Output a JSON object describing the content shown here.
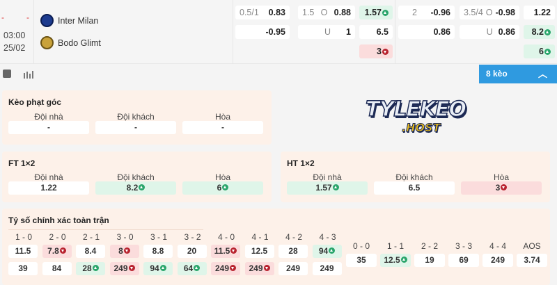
{
  "match": {
    "home_score": "-",
    "away_score": "-",
    "time": "03:00",
    "date": "25/02",
    "home": "Inter Milan",
    "away": "Bodo Glimt"
  },
  "odds": {
    "hdp": {
      "line": "0.5/1",
      "home": "0.83",
      "away": "-0.95"
    },
    "ou": {
      "line": "1.5",
      "o": "O",
      "over": "0.88",
      "u": "U",
      "under": "1"
    },
    "x12": [
      {
        "v": "1.57",
        "t": "up"
      },
      {
        "v": "6.5",
        "t": ""
      },
      {
        "v": "3",
        "t": "down"
      }
    ],
    "hdp2": {
      "line": "2",
      "home": "-0.96",
      "away": "0.86"
    },
    "ou2": {
      "line": "3.5/4",
      "o": "O",
      "over": "-0.98",
      "u": "U",
      "under": "0.86"
    },
    "x12b": [
      {
        "v": "1.22",
        "t": ""
      },
      {
        "v": "8.2",
        "t": "up"
      },
      {
        "v": "6",
        "t": "up"
      }
    ]
  },
  "toolbar": {
    "shirt_icon": "shirt-icon",
    "stats_icon": "stats-icon",
    "more_label": "8 kèo"
  },
  "logo": {
    "text": "TYLEKEO",
    "sub": ".HOST"
  },
  "corner": {
    "title": "Kèo phạt góc",
    "labels": [
      "Đội nhà",
      "Đội khách",
      "Hòa"
    ],
    "values": [
      "-",
      "-",
      "-"
    ]
  },
  "ft": {
    "title": "FT 1×2",
    "labels": [
      "Đội nhà",
      "Đội khách",
      "Hòa"
    ],
    "values": [
      {
        "v": "1.22",
        "t": ""
      },
      {
        "v": "8.2",
        "t": "up"
      },
      {
        "v": "6",
        "t": "up"
      }
    ]
  },
  "ht": {
    "title": "HT 1×2",
    "labels": [
      "Đội nhà",
      "Đội khách",
      "Hòa"
    ],
    "values": [
      {
        "v": "1.57",
        "t": "up"
      },
      {
        "v": "6.5",
        "t": ""
      },
      {
        "v": "3",
        "t": "down"
      }
    ]
  },
  "cs": {
    "title": "Tỷ số chính xác toàn trận",
    "home_labels": [
      "1 - 0",
      "2 - 0",
      "2 - 1",
      "3 - 0",
      "3 - 1",
      "3 - 2",
      "4 - 0",
      "4 - 1",
      "4 - 2",
      "4 - 3"
    ],
    "home_values": [
      {
        "v": "11.5",
        "t": ""
      },
      {
        "v": "7.8",
        "t": "down"
      },
      {
        "v": "8.4",
        "t": ""
      },
      {
        "v": "8",
        "t": "down"
      },
      {
        "v": "8.8",
        "t": ""
      },
      {
        "v": "20",
        "t": ""
      },
      {
        "v": "11.5",
        "t": "down"
      },
      {
        "v": "12.5",
        "t": ""
      },
      {
        "v": "28",
        "t": ""
      },
      {
        "v": "94",
        "t": "up"
      }
    ],
    "away_values": [
      {
        "v": "39",
        "t": ""
      },
      {
        "v": "84",
        "t": ""
      },
      {
        "v": "28",
        "t": "up"
      },
      {
        "v": "249",
        "t": "down"
      },
      {
        "v": "94",
        "t": "up"
      },
      {
        "v": "64",
        "t": "up"
      },
      {
        "v": "249",
        "t": "down"
      },
      {
        "v": "249",
        "t": "down"
      },
      {
        "v": "249",
        "t": ""
      },
      {
        "v": "249",
        "t": ""
      }
    ],
    "draw_labels": [
      "0 - 0",
      "1 - 1",
      "2 - 2",
      "3 - 3",
      "4 - 4",
      "AOS"
    ],
    "draw_values": [
      {
        "v": "35",
        "t": ""
      },
      {
        "v": "12.5",
        "t": "up"
      },
      {
        "v": "19",
        "t": ""
      },
      {
        "v": "69",
        "t": ""
      },
      {
        "v": "249",
        "t": ""
      },
      {
        "v": "3.74",
        "t": ""
      }
    ]
  },
  "colors": {
    "up": "#2aa56b",
    "down": "#b8232f",
    "accent": "#2f9ae0",
    "panel": "#fdf1e9"
  }
}
